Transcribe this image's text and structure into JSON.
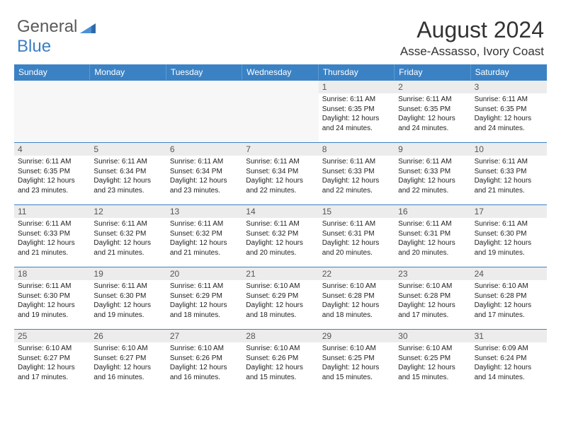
{
  "logo": {
    "text1": "General",
    "text2": "Blue",
    "color1": "#5a5a5a",
    "color2": "#3b7fc4",
    "icon_color": "#3b7fc4"
  },
  "title": "August 2024",
  "location": "Asse-Assasso, Ivory Coast",
  "colors": {
    "header_bg": "#3b82c4",
    "header_text": "#ffffff",
    "daynum_bg": "#ececec",
    "border": "#3b82c4",
    "blank_bg": "#f7f7f7"
  },
  "weekdays": [
    "Sunday",
    "Monday",
    "Tuesday",
    "Wednesday",
    "Thursday",
    "Friday",
    "Saturday"
  ],
  "leading_blanks": 4,
  "days": [
    {
      "n": "1",
      "sunrise": "6:11 AM",
      "sunset": "6:35 PM",
      "daylight": "12 hours and 24 minutes."
    },
    {
      "n": "2",
      "sunrise": "6:11 AM",
      "sunset": "6:35 PM",
      "daylight": "12 hours and 24 minutes."
    },
    {
      "n": "3",
      "sunrise": "6:11 AM",
      "sunset": "6:35 PM",
      "daylight": "12 hours and 24 minutes."
    },
    {
      "n": "4",
      "sunrise": "6:11 AM",
      "sunset": "6:35 PM",
      "daylight": "12 hours and 23 minutes."
    },
    {
      "n": "5",
      "sunrise": "6:11 AM",
      "sunset": "6:34 PM",
      "daylight": "12 hours and 23 minutes."
    },
    {
      "n": "6",
      "sunrise": "6:11 AM",
      "sunset": "6:34 PM",
      "daylight": "12 hours and 23 minutes."
    },
    {
      "n": "7",
      "sunrise": "6:11 AM",
      "sunset": "6:34 PM",
      "daylight": "12 hours and 22 minutes."
    },
    {
      "n": "8",
      "sunrise": "6:11 AM",
      "sunset": "6:33 PM",
      "daylight": "12 hours and 22 minutes."
    },
    {
      "n": "9",
      "sunrise": "6:11 AM",
      "sunset": "6:33 PM",
      "daylight": "12 hours and 22 minutes."
    },
    {
      "n": "10",
      "sunrise": "6:11 AM",
      "sunset": "6:33 PM",
      "daylight": "12 hours and 21 minutes."
    },
    {
      "n": "11",
      "sunrise": "6:11 AM",
      "sunset": "6:33 PM",
      "daylight": "12 hours and 21 minutes."
    },
    {
      "n": "12",
      "sunrise": "6:11 AM",
      "sunset": "6:32 PM",
      "daylight": "12 hours and 21 minutes."
    },
    {
      "n": "13",
      "sunrise": "6:11 AM",
      "sunset": "6:32 PM",
      "daylight": "12 hours and 21 minutes."
    },
    {
      "n": "14",
      "sunrise": "6:11 AM",
      "sunset": "6:32 PM",
      "daylight": "12 hours and 20 minutes."
    },
    {
      "n": "15",
      "sunrise": "6:11 AM",
      "sunset": "6:31 PM",
      "daylight": "12 hours and 20 minutes."
    },
    {
      "n": "16",
      "sunrise": "6:11 AM",
      "sunset": "6:31 PM",
      "daylight": "12 hours and 20 minutes."
    },
    {
      "n": "17",
      "sunrise": "6:11 AM",
      "sunset": "6:30 PM",
      "daylight": "12 hours and 19 minutes."
    },
    {
      "n": "18",
      "sunrise": "6:11 AM",
      "sunset": "6:30 PM",
      "daylight": "12 hours and 19 minutes."
    },
    {
      "n": "19",
      "sunrise": "6:11 AM",
      "sunset": "6:30 PM",
      "daylight": "12 hours and 19 minutes."
    },
    {
      "n": "20",
      "sunrise": "6:11 AM",
      "sunset": "6:29 PM",
      "daylight": "12 hours and 18 minutes."
    },
    {
      "n": "21",
      "sunrise": "6:10 AM",
      "sunset": "6:29 PM",
      "daylight": "12 hours and 18 minutes."
    },
    {
      "n": "22",
      "sunrise": "6:10 AM",
      "sunset": "6:28 PM",
      "daylight": "12 hours and 18 minutes."
    },
    {
      "n": "23",
      "sunrise": "6:10 AM",
      "sunset": "6:28 PM",
      "daylight": "12 hours and 17 minutes."
    },
    {
      "n": "24",
      "sunrise": "6:10 AM",
      "sunset": "6:28 PM",
      "daylight": "12 hours and 17 minutes."
    },
    {
      "n": "25",
      "sunrise": "6:10 AM",
      "sunset": "6:27 PM",
      "daylight": "12 hours and 17 minutes."
    },
    {
      "n": "26",
      "sunrise": "6:10 AM",
      "sunset": "6:27 PM",
      "daylight": "12 hours and 16 minutes."
    },
    {
      "n": "27",
      "sunrise": "6:10 AM",
      "sunset": "6:26 PM",
      "daylight": "12 hours and 16 minutes."
    },
    {
      "n": "28",
      "sunrise": "6:10 AM",
      "sunset": "6:26 PM",
      "daylight": "12 hours and 15 minutes."
    },
    {
      "n": "29",
      "sunrise": "6:10 AM",
      "sunset": "6:25 PM",
      "daylight": "12 hours and 15 minutes."
    },
    {
      "n": "30",
      "sunrise": "6:10 AM",
      "sunset": "6:25 PM",
      "daylight": "12 hours and 15 minutes."
    },
    {
      "n": "31",
      "sunrise": "6:09 AM",
      "sunset": "6:24 PM",
      "daylight": "12 hours and 14 minutes."
    }
  ],
  "labels": {
    "sunrise": "Sunrise: ",
    "sunset": "Sunset: ",
    "daylight": "Daylight: "
  }
}
